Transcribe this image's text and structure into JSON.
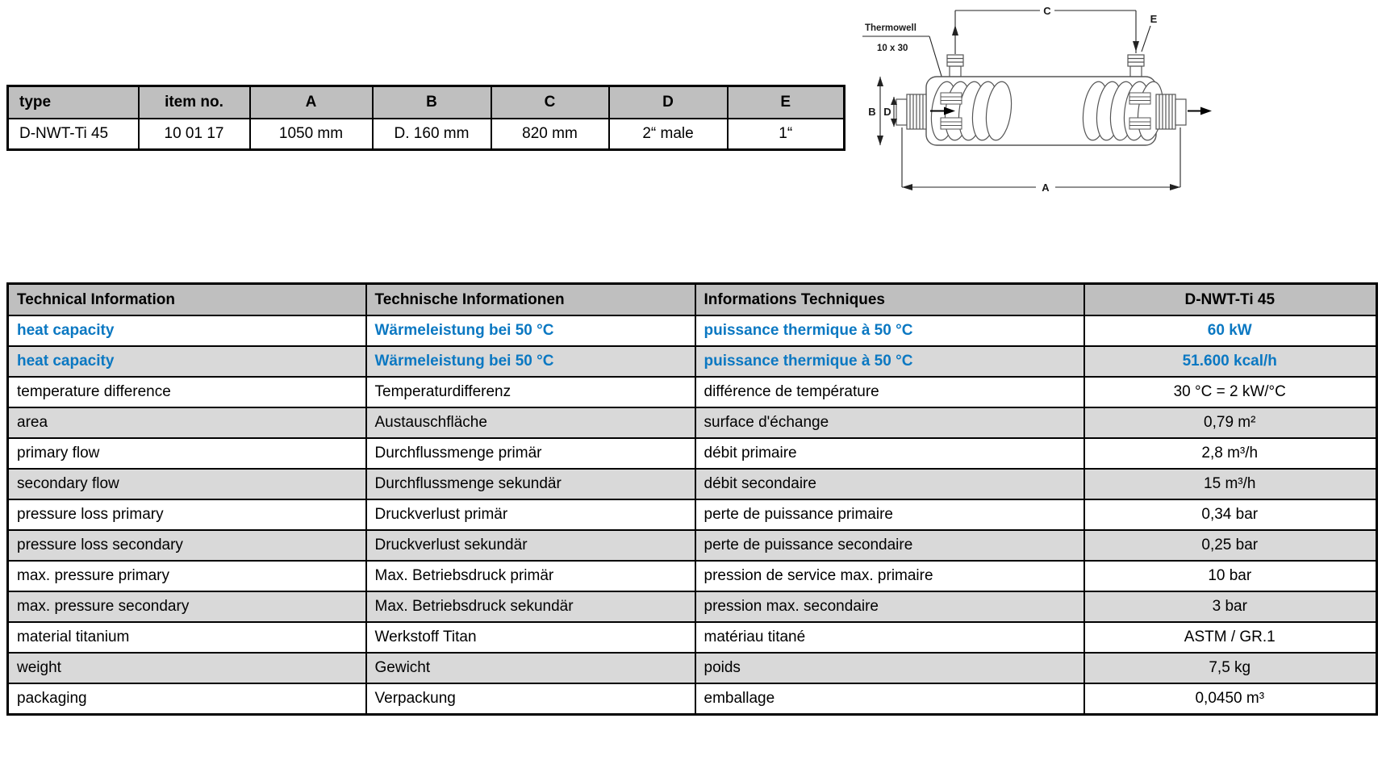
{
  "spec_table": {
    "headers": [
      "type",
      "item no.",
      "A",
      "B",
      "C",
      "D",
      "E"
    ],
    "row": [
      "D-NWT-Ti 45",
      "10 01 17",
      "1050 mm",
      "D. 160 mm",
      "820 mm",
      "2“ male",
      "1“"
    ]
  },
  "diagram": {
    "thermowell_label": "Thermowell",
    "thermowell_size": "10 x 30",
    "dims": {
      "a": "A",
      "b": "B",
      "c": "C",
      "d": "D",
      "e": "E"
    }
  },
  "tech_table": {
    "headers": [
      "Technical Information",
      "Technische Informationen",
      "Informations Techniques",
      "D-NWT-Ti 45"
    ],
    "rows": [
      {
        "en": "heat capacity",
        "de": "Wärmeleistung bei 50 °C",
        "fr": "puissance thermique à 50 °C",
        "value": "60 kW",
        "highlight": true
      },
      {
        "en": "heat capacity",
        "de": "Wärmeleistung bei 50 °C",
        "fr": "puissance thermique à 50 °C",
        "value": "51.600 kcal/h",
        "highlight": true
      },
      {
        "en": "temperature difference",
        "de": "Temperaturdifferenz",
        "fr": "différence de température",
        "value": "30 °C = 2 kW/°C",
        "highlight": false
      },
      {
        "en": "area",
        "de": "Austauschfläche",
        "fr": "surface d'échange",
        "value": "0,79 m²",
        "highlight": false
      },
      {
        "en": "primary flow",
        "de": "Durchflussmenge primär",
        "fr": "débit primaire",
        "value": "2,8 m³/h",
        "highlight": false
      },
      {
        "en": "secondary flow",
        "de": "Durchflussmenge sekundär",
        "fr": "débit secondaire",
        "value": "15 m³/h",
        "highlight": false
      },
      {
        "en": "pressure loss primary",
        "de": "Druckverlust primär",
        "fr": "perte de puissance primaire",
        "value": "0,34 bar",
        "highlight": false
      },
      {
        "en": "pressure loss secondary",
        "de": "Druckverlust sekundär",
        "fr": "perte de puissance secondaire",
        "value": "0,25 bar",
        "highlight": false
      },
      {
        "en": "max. pressure primary",
        "de": "Max. Betriebsdruck primär",
        "fr": "pression de service max. primaire",
        "value": "10 bar",
        "highlight": false
      },
      {
        "en": "max. pressure secondary",
        "de": "Max. Betriebsdruck sekundär",
        "fr": "pression max. secondaire",
        "value": "3 bar",
        "highlight": false
      },
      {
        "en": "material titanium",
        "de": "Werkstoff Titan",
        "fr": "matériau titané",
        "value": "ASTM / GR.1",
        "highlight": false
      },
      {
        "en": "weight",
        "de": "Gewicht",
        "fr": "poids",
        "value": "7,5 kg",
        "highlight": false
      },
      {
        "en": "packaging",
        "de": "Verpackung",
        "fr": "emballage",
        "value": "0,0450 m³",
        "highlight": false
      }
    ]
  },
  "colors": {
    "accent_blue": "#0b78c2",
    "header_gray": "#bfbfbf",
    "row_alt_gray": "#d9d9d9"
  }
}
